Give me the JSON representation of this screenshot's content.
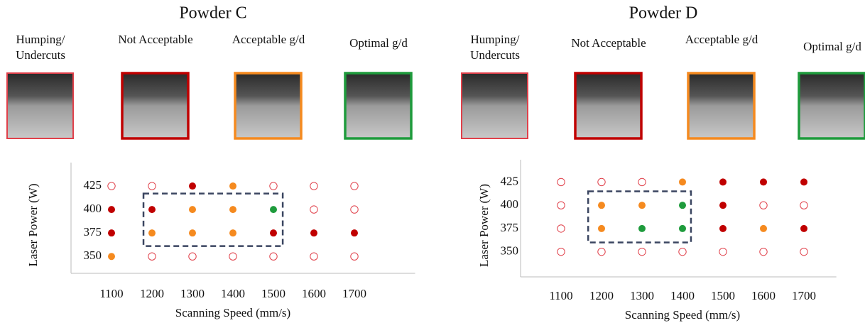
{
  "chart_data": [
    {
      "type": "scatter",
      "title": "Powder C",
      "x_label": "Scanning Speed (mm/s)",
      "y_label": "Laser Power (W)",
      "xlim": [
        1000,
        1850
      ],
      "ylim": [
        332,
        450
      ],
      "xticks": [
        1100,
        1200,
        1300,
        1400,
        1500,
        1600,
        1700
      ],
      "yticks": [
        350,
        375,
        400,
        425
      ],
      "highlight_box": {
        "x": [
          1179,
          1523
        ],
        "y": [
          361,
          417
        ]
      },
      "series": [
        {
          "name": "Humping/ Undercuts",
          "color": "#e0404a",
          "filled": false,
          "x": [
            1100,
            1200,
            1500,
            1600,
            1700,
            1600,
            1700,
            1200,
            1300,
            1400,
            1500,
            1600,
            1700
          ],
          "y": [
            425,
            425,
            425,
            425,
            425,
            400,
            400,
            350,
            350,
            350,
            350,
            350,
            350
          ]
        },
        {
          "name": "Not Acceptable",
          "color": "#c00000",
          "filled": true,
          "x": [
            1300,
            1100,
            1200,
            1100,
            1500,
            1600,
            1700
          ],
          "y": [
            425,
            400,
            400,
            375,
            375,
            375,
            375
          ]
        },
        {
          "name": "Acceptable g/d",
          "color": "#f58a1f",
          "filled": true,
          "x": [
            1400,
            1300,
            1400,
            1200,
            1300,
            1400,
            1100
          ],
          "y": [
            425,
            400,
            400,
            375,
            375,
            375,
            350
          ]
        },
        {
          "name": "Optimal g/d",
          "color": "#1e9b3c",
          "filled": true,
          "x": [
            1500
          ],
          "y": [
            400
          ]
        }
      ]
    },
    {
      "type": "scatter",
      "title": "Powder D",
      "x_label": "Scanning Speed (mm/s)",
      "y_label": "Laser Power (W)",
      "xlim": [
        1000,
        1780
      ],
      "ylim": [
        323,
        449
      ],
      "xticks": [
        1100,
        1200,
        1300,
        1400,
        1500,
        1600,
        1700
      ],
      "yticks": [
        350,
        375,
        400,
        425
      ],
      "highlight_box": {
        "x": [
          1167,
          1421
        ],
        "y": [
          360,
          415
        ]
      },
      "series": [
        {
          "name": "Humping/ Undercuts",
          "color": "#e0404a",
          "filled": false,
          "x": [
            1100,
            1200,
            1300,
            1100,
            1600,
            1700,
            1100,
            1100,
            1200,
            1300,
            1400,
            1500,
            1600,
            1700
          ],
          "y": [
            425,
            425,
            425,
            400,
            400,
            400,
            375,
            350,
            350,
            350,
            350,
            350,
            350,
            350
          ]
        },
        {
          "name": "Not Acceptable",
          "color": "#c00000",
          "filled": true,
          "x": [
            1500,
            1600,
            1700,
            1500,
            1500,
            1700
          ],
          "y": [
            425,
            425,
            425,
            400,
            375,
            375
          ]
        },
        {
          "name": "Acceptable g/d",
          "color": "#f58a1f",
          "filled": true,
          "x": [
            1400,
            1200,
            1300,
            1200,
            1600
          ],
          "y": [
            425,
            400,
            400,
            375,
            375
          ]
        },
        {
          "name": "Optimal g/d",
          "color": "#1e9b3c",
          "filled": true,
          "x": [
            1400,
            1300,
            1400
          ],
          "y": [
            400,
            375,
            375
          ]
        }
      ]
    }
  ]
}
